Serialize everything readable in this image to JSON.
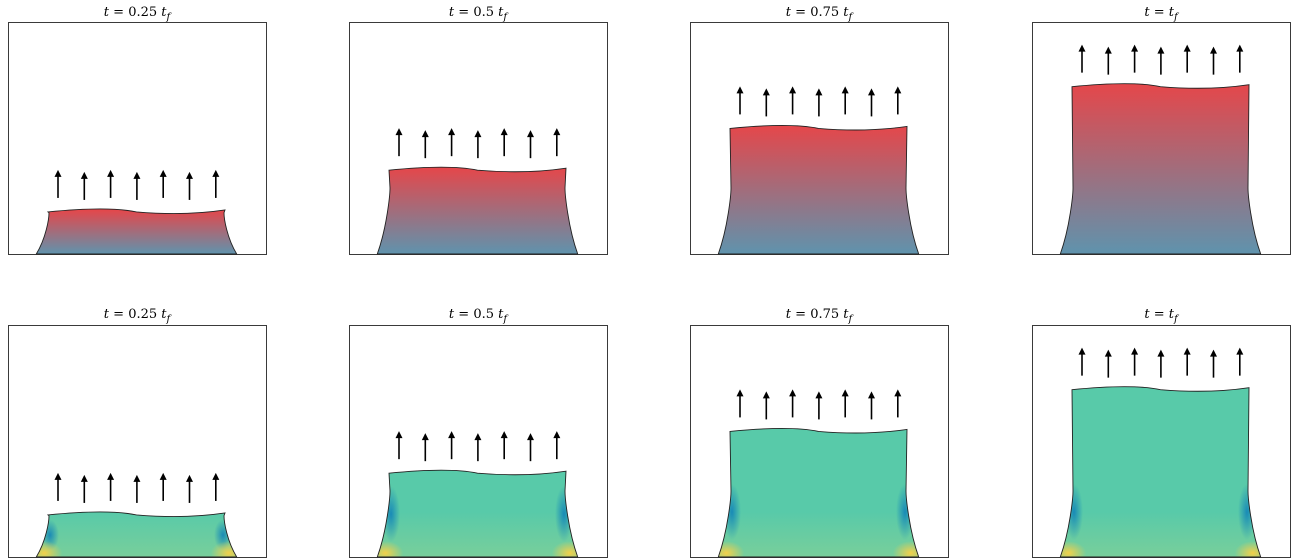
{
  "figure": {
    "rows": [
      {
        "name": "position-gradient-row",
        "colors": {
          "top": "#e4474b",
          "bottom": "#5f93ad"
        },
        "panels": [
          {
            "title_lhs": "t",
            "title_rhs": "0.25",
            "title_var": "t",
            "title_sub": "f",
            "height_fraction": 0.19
          },
          {
            "title_lhs": "t",
            "title_rhs": "0.5",
            "title_var": "t",
            "title_sub": "f",
            "height_fraction": 0.37
          },
          {
            "title_lhs": "t",
            "title_rhs": "0.75",
            "title_var": "t",
            "title_sub": "f",
            "height_fraction": 0.55
          },
          {
            "title_lhs": "t",
            "title_rhs": "",
            "title_var": "t",
            "title_sub": "f",
            "height_fraction": 0.73
          }
        ]
      },
      {
        "name": "stress-field-row",
        "colors": {
          "main": "#58caa9",
          "band": "#7ccf99",
          "edge": "#0d7fb9",
          "corner": "#f3d04a"
        },
        "panels": [
          {
            "title_lhs": "t",
            "title_rhs": "0.25",
            "title_var": "t",
            "title_sub": "f",
            "height_fraction": 0.19
          },
          {
            "title_lhs": "t",
            "title_rhs": "0.5",
            "title_var": "t",
            "title_sub": "f",
            "height_fraction": 0.37
          },
          {
            "title_lhs": "t",
            "title_rhs": "0.75",
            "title_var": "t",
            "title_sub": "f",
            "height_fraction": 0.55
          },
          {
            "title_lhs": "t",
            "title_rhs": "",
            "title_var": "t",
            "title_sub": "f",
            "height_fraction": 0.73
          }
        ]
      }
    ],
    "arrows_per_panel": 7
  }
}
